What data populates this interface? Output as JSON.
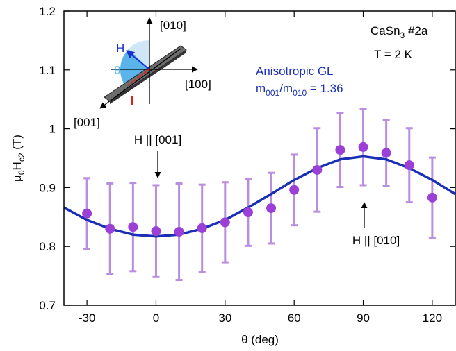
{
  "chart_data": {
    "type": "scatter",
    "xlabel": "θ (deg)",
    "ylabel": [
      "μ",
      "0",
      "H",
      "c2",
      " (T)"
    ],
    "xlim": [
      -40,
      130
    ],
    "ylim": [
      0.7,
      1.2
    ],
    "xticks": [
      -30,
      0,
      30,
      60,
      90,
      120
    ],
    "yticks": [
      0.7,
      0.8,
      0.9,
      1,
      1.1,
      1.2
    ],
    "x": [
      -30,
      -20,
      -10,
      0,
      10,
      20,
      30,
      40,
      50,
      60,
      70,
      80,
      90,
      100,
      110,
      120
    ],
    "values": [
      0.856,
      0.83,
      0.833,
      0.826,
      0.825,
      0.831,
      0.841,
      0.858,
      0.865,
      0.896,
      0.93,
      0.964,
      0.969,
      0.959,
      0.938,
      0.883
    ],
    "errors": [
      0.06,
      0.077,
      0.075,
      0.078,
      0.082,
      0.074,
      0.068,
      0.057,
      0.06,
      0.06,
      0.071,
      0.063,
      0.065,
      0.056,
      0.063,
      0.068
    ],
    "color": "#9b3fd6",
    "errorbar_color": "#b98ee0",
    "fit": {
      "x": [
        -40,
        -30,
        -20,
        -10,
        0,
        10,
        20,
        30,
        40,
        50,
        60,
        70,
        80,
        90,
        100,
        110,
        120,
        130
      ],
      "values": [
        0.866,
        0.845,
        0.83,
        0.82,
        0.817,
        0.82,
        0.83,
        0.845,
        0.866,
        0.889,
        0.913,
        0.933,
        0.948,
        0.953,
        0.948,
        0.933,
        0.913,
        0.889
      ],
      "color": "#1a2fb5"
    },
    "fit_label": [
      "Anisotropic GL",
      "m",
      "001",
      "/m",
      "010",
      " = 1.36"
    ],
    "sample_label": [
      "CaSn",
      "3",
      " #2a"
    ],
    "temperature_label": "T = 2 K",
    "annotations": [
      "H || [001]",
      "H || [010]"
    ],
    "inset_labels": [
      "[010]",
      "[100]",
      "[001]",
      "H",
      "θ"
    ]
  }
}
